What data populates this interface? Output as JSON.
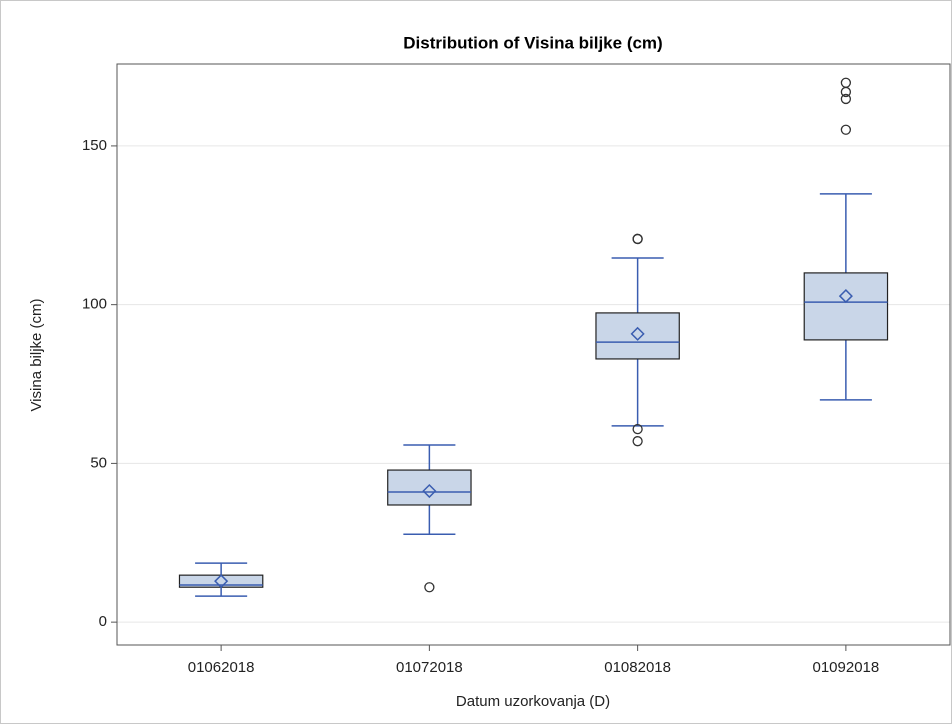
{
  "chart_data": {
    "type": "box",
    "title": "Distribution of Visina biljke (cm)",
    "x_label": "Datum uzorkovanja (D)",
    "y_label": "Visina biljke (cm)",
    "categories": [
      "01062018",
      "01072018",
      "01082018",
      "01092018"
    ],
    "boxes": [
      {
        "whisker_low": 8.2,
        "q1": 11.0,
        "median": 11.7,
        "q3": 14.8,
        "whisker_high": 18.6,
        "mean": 12.9,
        "outliers": []
      },
      {
        "whisker_low": 27.7,
        "q1": 36.9,
        "median": 41.0,
        "q3": 47.9,
        "whisker_high": 55.8,
        "mean": 41.3,
        "outliers": [
          11.0
        ]
      },
      {
        "whisker_low": 61.8,
        "q1": 82.9,
        "median": 88.2,
        "q3": 97.4,
        "whisker_high": 114.7,
        "mean": 90.8,
        "outliers": [
          120.7,
          120.7,
          60.8,
          57.0
        ]
      },
      {
        "whisker_low": 70.0,
        "q1": 88.9,
        "median": 100.8,
        "q3": 110.0,
        "whisker_high": 134.9,
        "mean": 102.7,
        "outliers": [
          155.1,
          164.8,
          167.0,
          169.9
        ]
      }
    ],
    "ylim": [
      -7.2,
      175.8
    ],
    "yticks": [
      0,
      50,
      100,
      150
    ],
    "grid": true,
    "box_color": "#c9d6e8",
    "line_color": "#3a5db0"
  }
}
